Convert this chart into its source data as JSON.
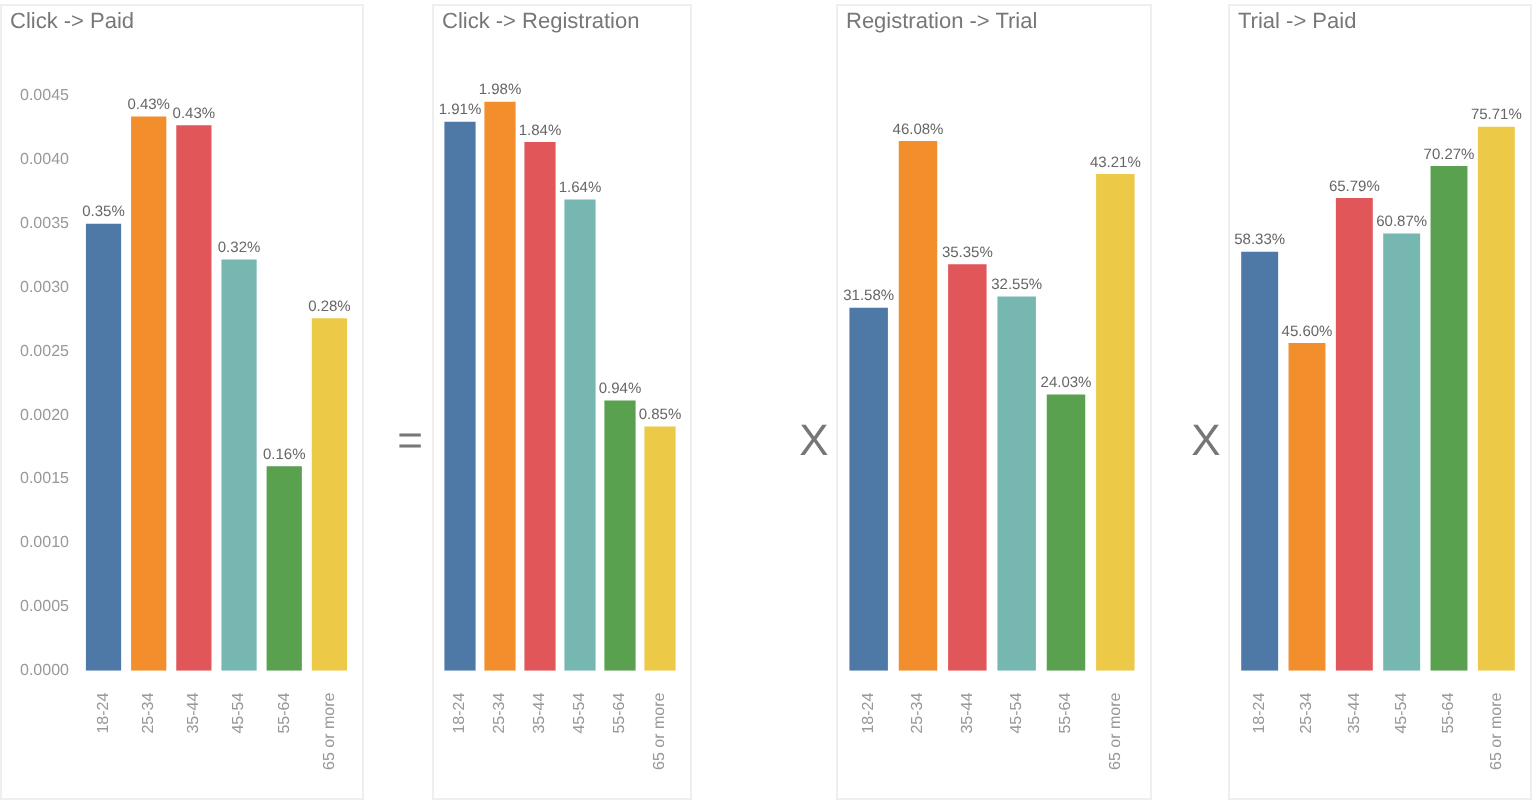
{
  "chart_data": [
    {
      "type": "bar",
      "title": "Click -> Paid",
      "categories": [
        "18-24",
        "25-34",
        "35-44",
        "45-54",
        "55-64",
        "65 or more"
      ],
      "values": [
        0.0035,
        0.00434,
        0.00427,
        0.00322,
        0.0016,
        0.00276
      ],
      "value_labels": [
        "0.35%",
        "0.43%",
        "0.43%",
        "0.32%",
        "0.16%",
        "0.28%"
      ],
      "colors": [
        "#4e79a7",
        "#f28e2b",
        "#e15759",
        "#76b7b2",
        "#59a14f",
        "#edc948"
      ],
      "ylim": [
        0,
        0.0045
      ],
      "yticks": [
        {
          "value": 0,
          "label": "0.0000"
        },
        {
          "value": 0.0005,
          "label": "0.0005"
        },
        {
          "value": 0.001,
          "label": "0.0010"
        },
        {
          "value": 0.0015,
          "label": "0.0015"
        },
        {
          "value": 0.002,
          "label": "0.0020"
        },
        {
          "value": 0.0025,
          "label": "0.0025"
        },
        {
          "value": 0.003,
          "label": "0.0030"
        },
        {
          "value": 0.0035,
          "label": "0.0035"
        },
        {
          "value": 0.004,
          "label": "0.0040"
        },
        {
          "value": 0.0045,
          "label": "0.0045"
        }
      ],
      "grid": false,
      "legend": false
    },
    {
      "type": "bar",
      "title": "Click -> Registration",
      "categories": [
        "18-24",
        "25-34",
        "35-44",
        "45-54",
        "55-64",
        "65 or more"
      ],
      "values": [
        1.91,
        1.98,
        1.84,
        1.64,
        0.94,
        0.85
      ],
      "value_labels": [
        "1.91%",
        "1.98%",
        "1.84%",
        "1.64%",
        "0.94%",
        "0.85%"
      ],
      "colors": [
        "#4e79a7",
        "#f28e2b",
        "#e15759",
        "#76b7b2",
        "#59a14f",
        "#edc948"
      ],
      "annotations": [
        "="
      ],
      "tick_labels": "x",
      "grid": false,
      "legend": false
    },
    {
      "type": "bar",
      "title": "Registration -> Trial",
      "categories": [
        "18-24",
        "25-34",
        "35-44",
        "45-54",
        "55-64",
        "65 or more"
      ],
      "values": [
        31.58,
        46.08,
        35.35,
        32.55,
        24.03,
        43.21
      ],
      "value_labels": [
        "31.58%",
        "46.08%",
        "35.35%",
        "32.55%",
        "24.03%",
        "43.21%"
      ],
      "colors": [
        "#4e79a7",
        "#f28e2b",
        "#e15759",
        "#76b7b2",
        "#59a14f",
        "#edc948"
      ],
      "annotations": [
        "X"
      ],
      "tick_labels": "x",
      "grid": false,
      "legend": false
    },
    {
      "type": "bar",
      "title": "Trial -> Paid",
      "categories": [
        "18-24",
        "25-34",
        "35-44",
        "45-54",
        "55-64",
        "65 or more"
      ],
      "values": [
        58.33,
        45.6,
        65.79,
        60.87,
        70.27,
        75.71
      ],
      "value_labels": [
        "58.33%",
        "45.60%",
        "65.79%",
        "60.87%",
        "70.27%",
        "75.71%"
      ],
      "colors": [
        "#4e79a7",
        "#f28e2b",
        "#e15759",
        "#76b7b2",
        "#59a14f",
        "#edc948"
      ],
      "annotations": [
        "X"
      ],
      "tick_labels": "x",
      "grid": false,
      "legend": false
    }
  ]
}
